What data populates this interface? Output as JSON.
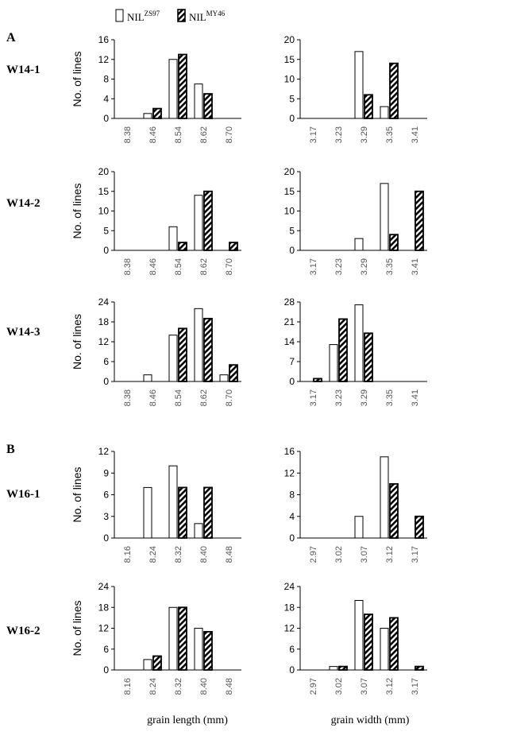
{
  "legend": {
    "series1_base": "NIL",
    "series1_sup": "ZS97",
    "series2_base": "NIL",
    "series2_sup": "MY46"
  },
  "panel_labels": [
    "A",
    "B"
  ],
  "x_axis_labels": {
    "length": "grain length (mm)",
    "width": "grain width (mm)"
  },
  "colors": {
    "series1_fill": "#ffffff",
    "series2_fill": "hatched black-white",
    "stroke": "#000000"
  },
  "chart_data": [
    {
      "type": "bar",
      "row": "W14-1",
      "ylabel": "No. of lines",
      "xlabel": "",
      "categories": [
        "8.38",
        "8.46",
        "8.54",
        "8.62",
        "8.70"
      ],
      "ylim": [
        0,
        16
      ],
      "yticks": [
        0,
        4,
        8,
        12,
        16
      ],
      "series": [
        {
          "name": "NIL ZS97",
          "values": [
            0,
            1,
            12,
            7,
            0
          ]
        },
        {
          "name": "NIL MY46",
          "values": [
            0,
            2,
            13,
            5,
            0
          ]
        }
      ]
    },
    {
      "type": "bar",
      "row": "W14-1",
      "ylabel": "",
      "xlabel": "",
      "categories": [
        "3.17",
        "3.23",
        "3.29",
        "3.35",
        "3.41"
      ],
      "ylim": [
        0,
        20
      ],
      "yticks": [
        0,
        5,
        10,
        15,
        20
      ],
      "series": [
        {
          "name": "NIL ZS97",
          "values": [
            0,
            0,
            17,
            3,
            0
          ]
        },
        {
          "name": "NIL MY46",
          "values": [
            0,
            0,
            6,
            14,
            0
          ]
        }
      ]
    },
    {
      "type": "bar",
      "row": "W14-2",
      "ylabel": "No. of lines",
      "xlabel": "",
      "categories": [
        "8.38",
        "8.46",
        "8.54",
        "8.62",
        "8.70"
      ],
      "ylim": [
        0,
        20
      ],
      "yticks": [
        0,
        5,
        10,
        15,
        20
      ],
      "series": [
        {
          "name": "NIL ZS97",
          "values": [
            0,
            0,
            6,
            14,
            0
          ]
        },
        {
          "name": "NIL MY46",
          "values": [
            0,
            0,
            2,
            15,
            2
          ]
        }
      ]
    },
    {
      "type": "bar",
      "row": "W14-2",
      "ylabel": "",
      "xlabel": "",
      "categories": [
        "3.17",
        "3.23",
        "3.29",
        "3.35",
        "3.41"
      ],
      "ylim": [
        0,
        20
      ],
      "yticks": [
        0,
        5,
        10,
        15,
        20
      ],
      "series": [
        {
          "name": "NIL ZS97",
          "values": [
            0,
            0,
            3,
            17,
            0
          ]
        },
        {
          "name": "NIL MY46",
          "values": [
            0,
            0,
            0,
            4,
            15
          ]
        }
      ]
    },
    {
      "type": "bar",
      "row": "W14-3",
      "ylabel": "No. of lines",
      "xlabel": "",
      "categories": [
        "8.38",
        "8.46",
        "8.54",
        "8.62",
        "8.70"
      ],
      "ylim": [
        0,
        24
      ],
      "yticks": [
        0,
        6,
        12,
        18,
        24
      ],
      "series": [
        {
          "name": "NIL ZS97",
          "values": [
            0,
            2,
            14,
            22,
            2
          ]
        },
        {
          "name": "NIL MY46",
          "values": [
            0,
            0,
            16,
            19,
            5
          ]
        }
      ]
    },
    {
      "type": "bar",
      "row": "W14-3",
      "ylabel": "",
      "xlabel": "",
      "categories": [
        "3.17",
        "3.23",
        "3.29",
        "3.35",
        "3.41"
      ],
      "ylim": [
        0,
        28
      ],
      "yticks": [
        0,
        7,
        14,
        21,
        28
      ],
      "series": [
        {
          "name": "NIL ZS97",
          "values": [
            0,
            13,
            27,
            0,
            0
          ]
        },
        {
          "name": "NIL MY46",
          "values": [
            1,
            22,
            17,
            0,
            0
          ]
        }
      ]
    },
    {
      "type": "bar",
      "row": "W16-1",
      "ylabel": "No. of lines",
      "xlabel": "",
      "categories": [
        "8.16",
        "8.24",
        "8.32",
        "8.40",
        "8.48"
      ],
      "ylim": [
        0,
        12
      ],
      "yticks": [
        0,
        3,
        6,
        9,
        12
      ],
      "series": [
        {
          "name": "NIL ZS97",
          "values": [
            0,
            7,
            10,
            2,
            0
          ]
        },
        {
          "name": "NIL MY46",
          "values": [
            0,
            0,
            7,
            7,
            0
          ]
        }
      ]
    },
    {
      "type": "bar",
      "row": "W16-1",
      "ylabel": "",
      "xlabel": "",
      "categories": [
        "2.97",
        "3.02",
        "3.07",
        "3.12",
        "3.17"
      ],
      "ylim": [
        0,
        16
      ],
      "yticks": [
        0,
        4,
        8,
        12,
        16
      ],
      "series": [
        {
          "name": "NIL ZS97",
          "values": [
            0,
            0,
            4,
            15,
            0
          ]
        },
        {
          "name": "NIL MY46",
          "values": [
            0,
            0,
            0,
            10,
            4
          ]
        }
      ]
    },
    {
      "type": "bar",
      "row": "W16-2",
      "ylabel": "No. of lines",
      "xlabel": "grain length (mm)",
      "categories": [
        "8.16",
        "8.24",
        "8.32",
        "8.40",
        "8.48"
      ],
      "ylim": [
        0,
        24
      ],
      "yticks": [
        0,
        6,
        12,
        18,
        24
      ],
      "series": [
        {
          "name": "NIL ZS97",
          "values": [
            0,
            3,
            18,
            12,
            0
          ]
        },
        {
          "name": "NIL MY46",
          "values": [
            0,
            4,
            18,
            11,
            0
          ]
        }
      ]
    },
    {
      "type": "bar",
      "row": "W16-2",
      "ylabel": "",
      "xlabel": "grain width (mm)",
      "categories": [
        "2.97",
        "3.02",
        "3.07",
        "3.12",
        "3.17"
      ],
      "ylim": [
        0,
        24
      ],
      "yticks": [
        0,
        6,
        12,
        18,
        24
      ],
      "series": [
        {
          "name": "NIL ZS97",
          "values": [
            0,
            1,
            20,
            12,
            0
          ]
        },
        {
          "name": "NIL MY46",
          "values": [
            0,
            1,
            16,
            15,
            1
          ]
        }
      ]
    }
  ]
}
